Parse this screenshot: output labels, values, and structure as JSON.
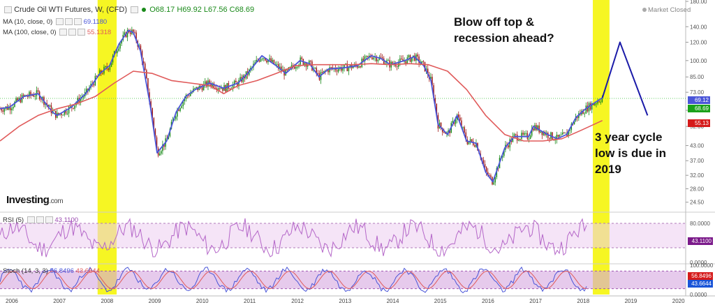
{
  "header": {
    "title": "Crude Oil WTI Futures, W, (CFD)",
    "open": "O68.17",
    "high": "H69.92",
    "low": "L67.56",
    "close": "C68.69",
    "status": "Market Closed"
  },
  "indicators": {
    "ma10_label": "MA (10, close, 0)",
    "ma10_value": "69.1180",
    "ma100_label": "MA (100, close, 0)",
    "ma100_value": "55.1318",
    "rsi_label": "RSI (5)",
    "rsi_value": "43.1100",
    "stoch_label": "Stoch (14, 3, 3)",
    "stoch_k": "56.8496",
    "stoch_d": "43.6644"
  },
  "annotations": {
    "top_line1": "Blow off top &",
    "top_line2": "recession ahead?",
    "bottom_line1": "3 year cycle",
    "bottom_line2": "low is due in",
    "bottom_line3": "2019"
  },
  "watermark": "Investing",
  "watermark_suffix": ".com",
  "badges": {
    "ma10": "69.12",
    "close": "68.69",
    "ma100": "55.13",
    "rsi": "43.1100",
    "stoch_k": "56.8496",
    "stoch_d": "43.6644"
  },
  "colors": {
    "candle_up": "#1a8a1a",
    "candle_down": "#a01818",
    "ma10": "#4a55d8",
    "ma100": "#e05a5a",
    "highlight": "#f6f623",
    "projection": "#1a1aa8",
    "oscillator": "#b466c8",
    "osc_band": "#eccdf0",
    "stoch_band": "#d6a6e0"
  },
  "chart_data": {
    "type": "line",
    "title": "Crude Oil WTI Futures, W, (CFD)",
    "xlabel": "",
    "ylabel": "",
    "log_scale": true,
    "ylim": [
      22.5,
      180
    ],
    "y_ticks": [
      180,
      140,
      120,
      100,
      85,
      73,
      61,
      52,
      43,
      37,
      32,
      28,
      24.5
    ],
    "y_tick_labels": [
      "180.00",
      "140.00",
      "120.00",
      "100.00",
      "85.00",
      "73.00",
      "61.00",
      "52.00",
      "43.00",
      "37.00",
      "32.00",
      "28.00",
      "24.50"
    ],
    "x_ticks": [
      "2006",
      "2007",
      "2008",
      "2009",
      "2010",
      "2011",
      "2012",
      "2013",
      "2014",
      "2015",
      "2016",
      "2017",
      "2018",
      "2019",
      "2020"
    ],
    "x_range": [
      2005.8,
      2020.2
    ],
    "highlight_periods": [
      [
        2007.85,
        2008.25
      ],
      [
        2018.25,
        2018.6
      ]
    ],
    "reference_line": 68.69,
    "series": [
      {
        "name": "MA (10, close, 0)",
        "x": [
          2005.8,
          2006.0,
          2006.3,
          2006.6,
          2006.9,
          2007.0,
          2007.3,
          2007.6,
          2007.9,
          2008.1,
          2008.3,
          2008.5,
          2008.6,
          2008.75,
          2008.95,
          2009.1,
          2009.3,
          2009.5,
          2009.7,
          2009.9,
          2010.2,
          2010.5,
          2010.8,
          2011.0,
          2011.3,
          2011.6,
          2011.8,
          2012.1,
          2012.3,
          2012.5,
          2012.7,
          2013.0,
          2013.3,
          2013.6,
          2013.8,
          2014.0,
          2014.3,
          2014.5,
          2014.7,
          2014.85,
          2015.0,
          2015.2,
          2015.4,
          2015.6,
          2015.8,
          2016.0,
          2016.15,
          2016.4,
          2016.6,
          2016.9,
          2017.0,
          2017.3,
          2017.5,
          2017.7,
          2017.9,
          2018.1,
          2018.3,
          2018.45
        ],
        "y": [
          62,
          63,
          70,
          72,
          60,
          58,
          63,
          72,
          88,
          95,
          118,
          135,
          132,
          110,
          65,
          40,
          45,
          60,
          70,
          75,
          80,
          76,
          80,
          88,
          105,
          95,
          88,
          100,
          97,
          85,
          92,
          93,
          95,
          105,
          102,
          96,
          100,
          104,
          95,
          82,
          53,
          48,
          58,
          45,
          44,
          33,
          30,
          42,
          47,
          47,
          52,
          48,
          46,
          48,
          57,
          62,
          66,
          69.12
        ]
      },
      {
        "name": "MA (100, close, 0)",
        "x": [
          2005.8,
          2006.2,
          2006.6,
          2007.0,
          2007.4,
          2007.8,
          2008.2,
          2008.6,
          2009.0,
          2009.4,
          2009.8,
          2010.2,
          2010.5,
          2010.8,
          2011.2,
          2011.6,
          2012.0,
          2012.4,
          2012.8,
          2013.2,
          2013.6,
          2014.0,
          2014.4,
          2014.8,
          2015.2,
          2015.6,
          2016.0,
          2016.4,
          2016.8,
          2017.2,
          2017.6,
          2018.0,
          2018.45
        ],
        "y": [
          45,
          52,
          58,
          62,
          65,
          70,
          80,
          90,
          88,
          82,
          80,
          78,
          72,
          78,
          82,
          88,
          95,
          96,
          96,
          96,
          97,
          96,
          97,
          96,
          90,
          75,
          58,
          48,
          45,
          45,
          46,
          50,
          55.13
        ]
      },
      {
        "name": "Projection",
        "x": [
          2018.45,
          2018.82,
          2019.4
        ],
        "y": [
          69,
          120,
          58
        ]
      }
    ],
    "rsi": {
      "name": "RSI (5)",
      "levels": [
        80,
        30
      ],
      "range": [
        0,
        100
      ],
      "last": 43.11
    },
    "stoch": {
      "name": "Stoch (14, 3, 3)",
      "levels": [
        80,
        20
      ],
      "range": [
        0,
        100
      ],
      "k_last": 56.8496,
      "d_last": 43.6644
    }
  }
}
